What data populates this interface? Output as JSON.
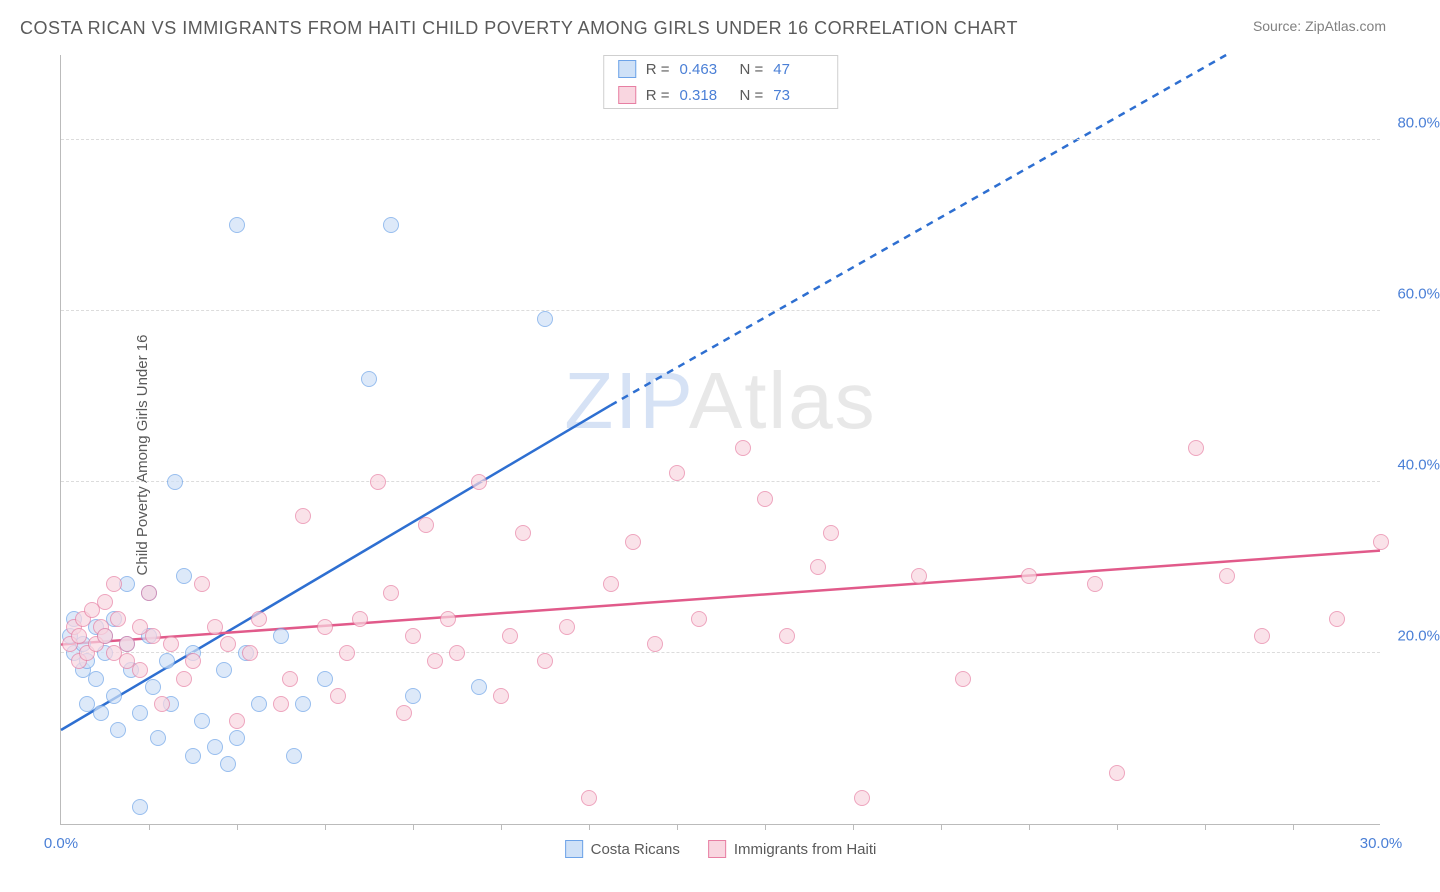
{
  "title": "COSTA RICAN VS IMMIGRANTS FROM HAITI CHILD POVERTY AMONG GIRLS UNDER 16 CORRELATION CHART",
  "source_label": "Source: ",
  "source_name": "ZipAtlas.com",
  "y_axis_label": "Child Poverty Among Girls Under 16",
  "watermark": {
    "z": "ZIP",
    "rest": "Atlas"
  },
  "chart": {
    "type": "scatter",
    "xlim": [
      0,
      30
    ],
    "ylim": [
      0,
      90
    ],
    "x_ticks_minor_step": 2,
    "x_ticks_labels": [
      {
        "x": 0,
        "label": "0.0%"
      },
      {
        "x": 30,
        "label": "30.0%"
      }
    ],
    "y_gridlines": [
      20,
      40,
      60,
      80
    ],
    "y_tick_labels": [
      {
        "y": 20,
        "label": "20.0%"
      },
      {
        "y": 40,
        "label": "40.0%"
      },
      {
        "y": 60,
        "label": "60.0%"
      },
      {
        "y": 80,
        "label": "80.0%"
      }
    ],
    "background_color": "#ffffff",
    "grid_color": "#dcdcdc",
    "axis_color": "#bbbbbb",
    "marker_radius": 8,
    "marker_border_width": 1,
    "series": [
      {
        "name": "Costa Ricans",
        "fill": "#cfe1f7",
        "stroke": "#6da3e8",
        "fill_opacity": 0.7,
        "r_value": "0.463",
        "n_value": "47",
        "trend": {
          "color": "#2e6fd1",
          "width": 2.5,
          "solid_from": {
            "x": 0,
            "y": 11
          },
          "solid_to": {
            "x": 12.5,
            "y": 49
          },
          "dash_to": {
            "x": 26.5,
            "y": 90
          }
        },
        "points": [
          [
            0.2,
            22
          ],
          [
            0.3,
            20
          ],
          [
            0.3,
            24
          ],
          [
            0.5,
            18
          ],
          [
            0.5,
            21
          ],
          [
            0.6,
            19
          ],
          [
            0.6,
            14
          ],
          [
            0.8,
            17
          ],
          [
            0.8,
            23
          ],
          [
            0.9,
            13
          ],
          [
            1.0,
            20
          ],
          [
            1.0,
            22
          ],
          [
            1.2,
            15
          ],
          [
            1.2,
            24
          ],
          [
            1.3,
            11
          ],
          [
            1.5,
            28
          ],
          [
            1.5,
            21
          ],
          [
            1.6,
            18
          ],
          [
            1.8,
            13
          ],
          [
            1.8,
            2
          ],
          [
            2.0,
            22
          ],
          [
            2.0,
            27
          ],
          [
            2.1,
            16
          ],
          [
            2.2,
            10
          ],
          [
            2.4,
            19
          ],
          [
            2.5,
            14
          ],
          [
            2.6,
            40
          ],
          [
            2.8,
            29
          ],
          [
            3.0,
            20
          ],
          [
            3.0,
            8
          ],
          [
            3.2,
            12
          ],
          [
            3.5,
            9
          ],
          [
            3.7,
            18
          ],
          [
            3.8,
            7
          ],
          [
            4.0,
            10
          ],
          [
            4.0,
            70
          ],
          [
            4.2,
            20
          ],
          [
            4.5,
            14
          ],
          [
            5.0,
            22
          ],
          [
            5.3,
            8
          ],
          [
            5.5,
            14
          ],
          [
            6.0,
            17
          ],
          [
            7.0,
            52
          ],
          [
            7.5,
            70
          ],
          [
            8.0,
            15
          ],
          [
            9.5,
            16
          ],
          [
            11.0,
            59
          ]
        ]
      },
      {
        "name": "Immigrants from Haiti",
        "fill": "#f9d6e0",
        "stroke": "#e77fa3",
        "fill_opacity": 0.7,
        "r_value": "0.318",
        "n_value": "73",
        "trend": {
          "color": "#e15a8a",
          "width": 2.5,
          "solid_from": {
            "x": 0,
            "y": 21
          },
          "solid_to": {
            "x": 30,
            "y": 32
          },
          "dash_to": null
        },
        "points": [
          [
            0.2,
            21
          ],
          [
            0.3,
            23
          ],
          [
            0.4,
            22
          ],
          [
            0.4,
            19
          ],
          [
            0.5,
            24
          ],
          [
            0.6,
            20
          ],
          [
            0.7,
            25
          ],
          [
            0.8,
            21
          ],
          [
            0.9,
            23
          ],
          [
            1.0,
            22
          ],
          [
            1.0,
            26
          ],
          [
            1.2,
            28
          ],
          [
            1.2,
            20
          ],
          [
            1.3,
            24
          ],
          [
            1.5,
            19
          ],
          [
            1.5,
            21
          ],
          [
            1.8,
            23
          ],
          [
            1.8,
            18
          ],
          [
            2.0,
            27
          ],
          [
            2.1,
            22
          ],
          [
            2.3,
            14
          ],
          [
            2.5,
            21
          ],
          [
            2.8,
            17
          ],
          [
            3.0,
            19
          ],
          [
            3.2,
            28
          ],
          [
            3.5,
            23
          ],
          [
            3.8,
            21
          ],
          [
            4.0,
            12
          ],
          [
            4.3,
            20
          ],
          [
            4.5,
            24
          ],
          [
            5.0,
            14
          ],
          [
            5.2,
            17
          ],
          [
            5.5,
            36
          ],
          [
            6.0,
            23
          ],
          [
            6.3,
            15
          ],
          [
            6.5,
            20
          ],
          [
            6.8,
            24
          ],
          [
            7.2,
            40
          ],
          [
            7.5,
            27
          ],
          [
            7.8,
            13
          ],
          [
            8.0,
            22
          ],
          [
            8.3,
            35
          ],
          [
            8.5,
            19
          ],
          [
            8.8,
            24
          ],
          [
            9.0,
            20
          ],
          [
            9.5,
            40
          ],
          [
            10.0,
            15
          ],
          [
            10.2,
            22
          ],
          [
            10.5,
            34
          ],
          [
            11.0,
            19
          ],
          [
            11.5,
            23
          ],
          [
            12.0,
            3
          ],
          [
            12.5,
            28
          ],
          [
            13.0,
            33
          ],
          [
            13.5,
            21
          ],
          [
            14.0,
            41
          ],
          [
            14.5,
            24
          ],
          [
            15.5,
            44
          ],
          [
            16.0,
            38
          ],
          [
            16.5,
            22
          ],
          [
            17.2,
            30
          ],
          [
            17.5,
            34
          ],
          [
            18.2,
            3
          ],
          [
            19.5,
            29
          ],
          [
            20.5,
            17
          ],
          [
            22.0,
            29
          ],
          [
            23.5,
            28
          ],
          [
            24.0,
            6
          ],
          [
            25.8,
            44
          ],
          [
            26.5,
            29
          ],
          [
            27.3,
            22
          ],
          [
            29.0,
            24
          ],
          [
            30.0,
            33
          ]
        ]
      }
    ]
  },
  "legend_top": {
    "r_label": "R =",
    "n_label": "N ="
  },
  "legend_bottom_labels": [
    "Costa Ricans",
    "Immigrants from Haiti"
  ]
}
